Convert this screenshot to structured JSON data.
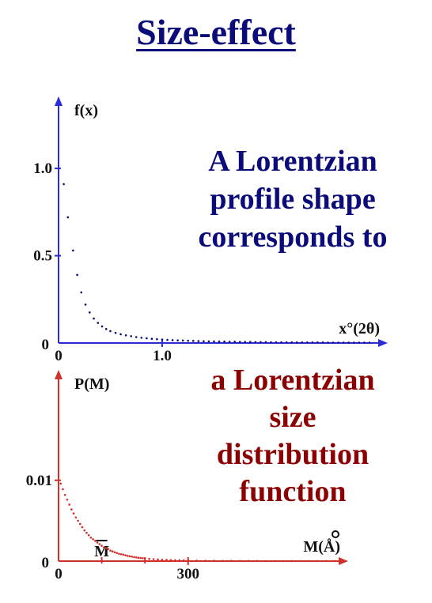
{
  "title": "Size-effect",
  "colors": {
    "title": "#0b0b7a",
    "top": "#0b0b7a",
    "bottom": "#8b0000",
    "axis_top": "#2b2bd6",
    "axis_bottom": "#d0302a"
  },
  "captions": {
    "top": [
      "A Lorentzian",
      "profile shape",
      "corresponds to"
    ],
    "bottom": [
      "a Lorentzian",
      "size",
      "distribution",
      "function"
    ]
  },
  "chart_data": [
    {
      "type": "scatter",
      "title": "",
      "ylabel": "f(x)",
      "xlabel": "x°(2θ)",
      "origin_label": "0",
      "xlim": [
        0,
        3.1
      ],
      "ylim": [
        0,
        1.15
      ],
      "x_ticks": [
        {
          "value": 0,
          "label": "0"
        },
        {
          "value": 1.0,
          "label": "1.0"
        }
      ],
      "y_ticks": [
        {
          "value": 1.0,
          "label": "1.0"
        },
        {
          "value": 0.5,
          "label": "0.5"
        }
      ],
      "grid": false,
      "series": [
        {
          "x": [
            0.05,
            0.09,
            0.14,
            0.18,
            0.22,
            0.26,
            0.3,
            0.34,
            0.38,
            0.42,
            0.46,
            0.5,
            0.55,
            0.6,
            0.65,
            0.7,
            0.75,
            0.8,
            0.85,
            0.9,
            0.95,
            1.0,
            1.05,
            1.1,
            1.15,
            1.2,
            1.25,
            1.3,
            1.35,
            1.4,
            1.45,
            1.5,
            1.55,
            1.6,
            1.65,
            1.7,
            1.75,
            1.8,
            1.85,
            1.9,
            1.95,
            2.0,
            2.05,
            2.1,
            2.15,
            2.2,
            2.25,
            2.3,
            2.35,
            2.4,
            2.45,
            2.5,
            2.55,
            2.6,
            2.65,
            2.7,
            2.75,
            2.8,
            2.85,
            2.9,
            2.95,
            3.0
          ],
          "y": [
            0.91,
            0.72,
            0.53,
            0.39,
            0.29,
            0.22,
            0.175,
            0.14,
            0.115,
            0.095,
            0.08,
            0.068,
            0.058,
            0.05,
            0.044,
            0.039,
            0.034,
            0.03,
            0.027,
            0.024,
            0.022,
            0.02,
            0.018,
            0.016,
            0.015,
            0.014,
            0.013,
            0.012,
            0.011,
            0.01,
            0.009,
            0.009,
            0.008,
            0.008,
            0.007,
            0.007,
            0.006,
            0.006,
            0.006,
            0.005,
            0.005,
            0.005,
            0.004,
            0.004,
            0.004,
            0.004,
            0.004,
            0.003,
            0.003,
            0.003,
            0.003,
            0.003,
            0.003,
            0.002,
            0.002,
            0.002,
            0.002,
            0.002,
            0.002,
            0.002,
            0.002,
            0.002
          ]
        }
      ]
    },
    {
      "type": "scatter",
      "title": "",
      "ylabel": "P(M)",
      "xlabel": "M(Å)",
      "origin_label": "0",
      "xlim": [
        0,
        700
      ],
      "ylim": [
        0,
        0.0135
      ],
      "x_ticks": [
        {
          "value": 0,
          "label": "0"
        },
        {
          "value": 300,
          "label": "300"
        }
      ],
      "extra_ticks": [
        100,
        200
      ],
      "y_ticks": [
        {
          "value": 0.01,
          "label": "0.01"
        }
      ],
      "mean_marker": {
        "value": 100,
        "label": "M"
      },
      "grid": false,
      "series": [
        {
          "x": [
            5,
            10,
            15,
            20,
            25,
            30,
            35,
            40,
            45,
            50,
            55,
            60,
            65,
            70,
            75,
            80,
            85,
            90,
            95,
            100,
            105,
            110,
            115,
            120,
            125,
            130,
            135,
            140,
            145,
            150,
            155,
            160,
            165,
            170,
            175,
            180,
            185,
            190,
            195,
            200,
            210,
            220,
            230,
            240,
            250,
            260,
            270,
            280,
            290,
            300,
            320,
            340,
            360,
            380,
            400,
            420,
            440,
            460,
            480,
            500,
            520,
            540,
            560,
            580,
            600,
            620,
            640
          ],
          "y": [
            0.0096,
            0.0089,
            0.0082,
            0.0076,
            0.007,
            0.0064,
            0.0059,
            0.0054,
            0.005,
            0.0046,
            0.0042,
            0.0038,
            0.0035,
            0.0032,
            0.0029,
            0.0027,
            0.0025,
            0.0023,
            0.0021,
            0.0019,
            0.0017,
            0.0016,
            0.0015,
            0.0013,
            0.0012,
            0.0011,
            0.001,
            0.0009,
            0.00085,
            0.0008,
            0.00072,
            0.00065,
            0.0006,
            0.00055,
            0.0005,
            0.00046,
            0.00042,
            0.00039,
            0.00036,
            0.00033,
            0.00028,
            0.00024,
            0.0002,
            0.00017,
            0.00015,
            0.00013,
            0.00011,
            0.0001,
            9e-05,
            8e-05,
            6e-05,
            5e-05,
            4e-05,
            3e-05,
            3e-05,
            2e-05,
            2e-05,
            2e-05,
            1e-05,
            1e-05,
            1e-05,
            1e-05,
            1e-05,
            1e-05,
            1e-05,
            1e-05,
            1e-05
          ]
        }
      ]
    }
  ]
}
